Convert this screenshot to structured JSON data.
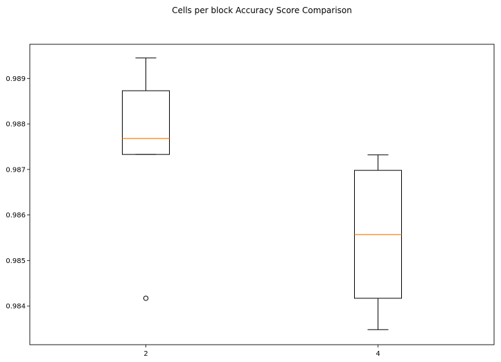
{
  "chart_data": {
    "type": "box",
    "title": "Cells per block Accuracy Score Comparison",
    "xlabel": "",
    "ylabel": "",
    "categories": [
      "2",
      "4"
    ],
    "ylim": [
      0.98315,
      0.98975
    ],
    "yticks": [
      0.984,
      0.985,
      0.986,
      0.987,
      0.988,
      0.989
    ],
    "ytick_labels": [
      "0.984",
      "0.985",
      "0.986",
      "0.987",
      "0.988",
      "0.989"
    ],
    "grid": false,
    "boxes": [
      {
        "category": "2",
        "whisker_low": 0.98733,
        "q1": 0.98733,
        "median": 0.98768,
        "q3": 0.98873,
        "whisker_high": 0.98945,
        "outliers": [
          0.98417
        ]
      },
      {
        "category": "4",
        "whisker_low": 0.98348,
        "q1": 0.98417,
        "median": 0.98557,
        "q3": 0.98698,
        "whisker_high": 0.98732,
        "outliers": []
      }
    ],
    "colors": {
      "box": "#000000",
      "median": "#ff7f0e",
      "axes": "#000000",
      "background": "#ffffff"
    }
  }
}
